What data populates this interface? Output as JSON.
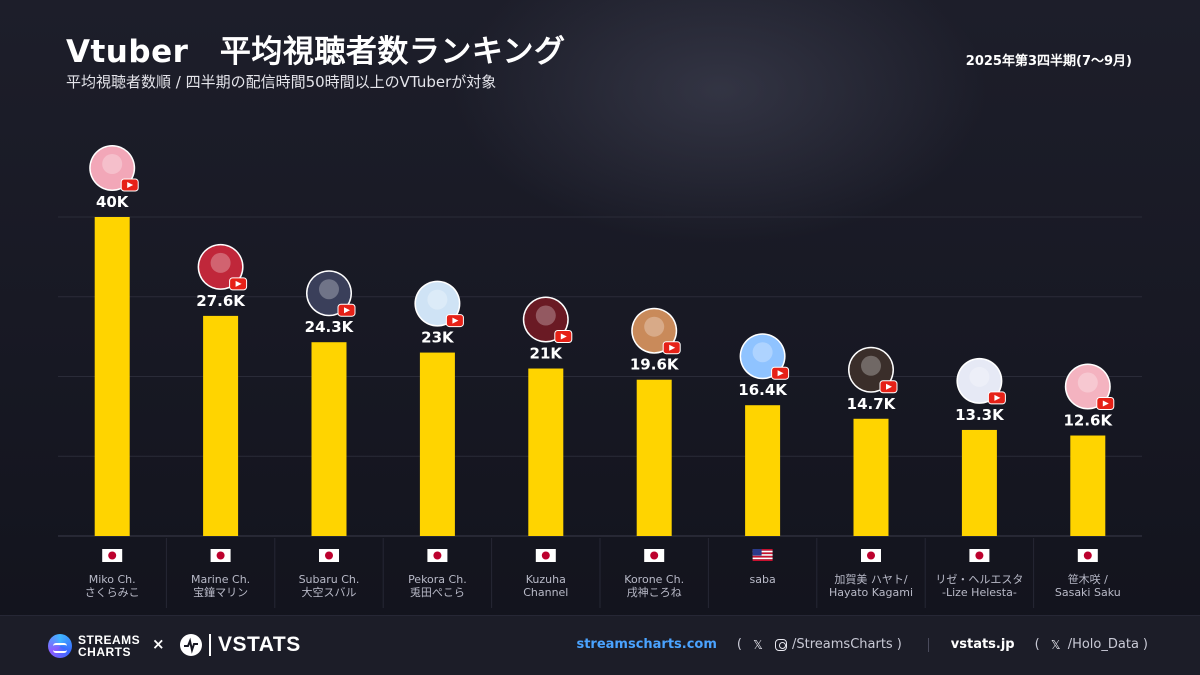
{
  "header": {
    "title": "Vtuber　平均視聴者数ランキング",
    "subtitle": "平均視聴者数順 / 四半期の配信時間50時間以上のVTuberが対象",
    "period": "2025年第3四半期(7〜9月)"
  },
  "chart_data": {
    "type": "bar",
    "title": "Vtuber　平均視聴者数ランキング",
    "subtitle": "平均視聴者数順 / 四半期の配信時間50時間以上のVTuberが対象",
    "xlabel": "",
    "ylabel": "",
    "ylim": [
      0,
      50000
    ],
    "grid": true,
    "bar_color": "#FFD400",
    "categories": [
      "Miko Ch.\nさくらみこ",
      "Marine Ch.\n宝鐘マリン",
      "Subaru Ch.\n大空スバル",
      "Pekora Ch.\n兎田ぺこら",
      "Kuzuha\nChannel",
      "Korone Ch.\n戌神ころね",
      "saba",
      "加賀美 ハヤト/\nHayato Kagami",
      "リゼ・ヘルエスタ\n-Lize Helesta-",
      "笹木咲 /\nSasaki Saku"
    ],
    "values": [
      40000,
      27600,
      24300,
      23000,
      21000,
      19600,
      16400,
      14700,
      13300,
      12600
    ],
    "value_labels": [
      "40K",
      "27.6K",
      "24.3K",
      "23K",
      "21K",
      "19.6K",
      "16.4K",
      "14.7K",
      "13.3K",
      "12.6K"
    ],
    "flags": [
      "jp",
      "jp",
      "jp",
      "jp",
      "jp",
      "jp",
      "us",
      "jp",
      "jp",
      "jp"
    ],
    "platform_icon": "youtube-icon",
    "avatar_colors": [
      "#f2a7b8",
      "#c0273a",
      "#3a3f5a",
      "#cfe3f5",
      "#6a1a24",
      "#c98a5a",
      "#8fc3ff",
      "#3a2e2a",
      "#e6e9f5",
      "#f4b3c0"
    ]
  },
  "footer": {
    "streamscharts_logo": [
      "STREAMS",
      "CHARTS"
    ],
    "times": "×",
    "vstats_logo": "VSTATS",
    "site1": "streamscharts.com",
    "handle1": "/StreamsCharts",
    "site2": "vstats.jp",
    "handle2": "/Holo_Data",
    "paren_open": "(",
    "paren_close": ")",
    "x_icon": "𝕏"
  }
}
